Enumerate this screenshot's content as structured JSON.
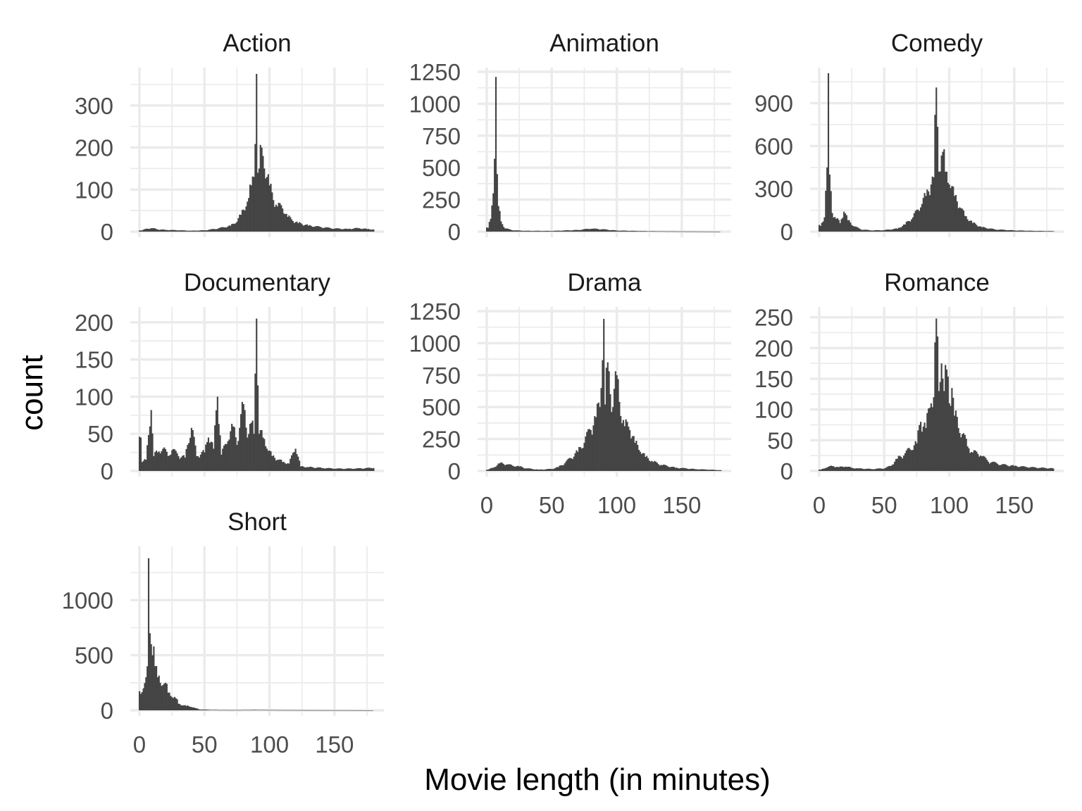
{
  "chart_data": {
    "type": "bar",
    "chart_kind": "faceted histogram",
    "xlabel": "Movie length (in minutes)",
    "ylabel": "count",
    "xlim": [
      0,
      180
    ],
    "x_ticks": [
      0,
      50,
      100,
      150
    ],
    "bin_width_minutes": 1,
    "grid": true,
    "bar_color": "#444444",
    "facets": [
      {
        "name": "Action",
        "ylim": [
          0,
          380
        ],
        "y_ticks": [
          0,
          100,
          200,
          300
        ],
        "y_tick_labels": [
          "0",
          "100",
          "200",
          "300"
        ],
        "show_x_ticks": false,
        "peaks": [
          {
            "x": 2,
            "y": 3
          },
          {
            "x": 6,
            "y": 7
          },
          {
            "x": 10,
            "y": 8
          },
          {
            "x": 14,
            "y": 5
          },
          {
            "x": 20,
            "y": 4
          },
          {
            "x": 30,
            "y": 3
          },
          {
            "x": 40,
            "y": 2
          },
          {
            "x": 50,
            "y": 3
          },
          {
            "x": 58,
            "y": 6
          },
          {
            "x": 65,
            "y": 10
          },
          {
            "x": 70,
            "y": 14
          },
          {
            "x": 74,
            "y": 20
          },
          {
            "x": 78,
            "y": 40
          },
          {
            "x": 82,
            "y": 60
          },
          {
            "x": 84,
            "y": 80
          },
          {
            "x": 86,
            "y": 110
          },
          {
            "x": 88,
            "y": 130
          },
          {
            "x": 90,
            "y": 375
          },
          {
            "x": 91,
            "y": 140
          },
          {
            "x": 92,
            "y": 150
          },
          {
            "x": 94,
            "y": 200
          },
          {
            "x": 96,
            "y": 150
          },
          {
            "x": 98,
            "y": 130
          },
          {
            "x": 100,
            "y": 110
          },
          {
            "x": 103,
            "y": 75
          },
          {
            "x": 106,
            "y": 60
          },
          {
            "x": 110,
            "y": 55
          },
          {
            "x": 114,
            "y": 35
          },
          {
            "x": 118,
            "y": 25
          },
          {
            "x": 122,
            "y": 20
          },
          {
            "x": 130,
            "y": 14
          },
          {
            "x": 140,
            "y": 10
          },
          {
            "x": 150,
            "y": 7
          },
          {
            "x": 160,
            "y": 6
          },
          {
            "x": 168,
            "y": 8
          },
          {
            "x": 175,
            "y": 6
          },
          {
            "x": 180,
            "y": 5
          }
        ]
      },
      {
        "name": "Animation",
        "ylim": [
          0,
          1250
        ],
        "y_ticks": [
          0,
          250,
          500,
          750,
          1000,
          1250
        ],
        "y_tick_labels": [
          "0",
          "250",
          "500",
          "750",
          "1000",
          "1250"
        ],
        "show_x_ticks": false,
        "peaks": [
          {
            "x": 1,
            "y": 30
          },
          {
            "x": 3,
            "y": 100
          },
          {
            "x": 5,
            "y": 300
          },
          {
            "x": 6,
            "y": 570
          },
          {
            "x": 7,
            "y": 1210
          },
          {
            "x": 8,
            "y": 450
          },
          {
            "x": 9,
            "y": 200
          },
          {
            "x": 11,
            "y": 80
          },
          {
            "x": 14,
            "y": 25
          },
          {
            "x": 20,
            "y": 10
          },
          {
            "x": 30,
            "y": 6
          },
          {
            "x": 50,
            "y": 5
          },
          {
            "x": 70,
            "y": 12
          },
          {
            "x": 80,
            "y": 22
          },
          {
            "x": 88,
            "y": 18
          },
          {
            "x": 100,
            "y": 8
          },
          {
            "x": 120,
            "y": 4
          },
          {
            "x": 140,
            "y": 2
          },
          {
            "x": 160,
            "y": 1
          },
          {
            "x": 180,
            "y": 0
          }
        ]
      },
      {
        "name": "Comedy",
        "ylim": [
          0,
          1120
        ],
        "y_ticks": [
          0,
          300,
          600,
          900
        ],
        "y_tick_labels": [
          "0",
          "300",
          "600",
          "900"
        ],
        "show_x_ticks": false,
        "peaks": [
          {
            "x": 1,
            "y": 40
          },
          {
            "x": 4,
            "y": 100
          },
          {
            "x": 6,
            "y": 450
          },
          {
            "x": 7,
            "y": 1110
          },
          {
            "x": 8,
            "y": 400
          },
          {
            "x": 10,
            "y": 130
          },
          {
            "x": 13,
            "y": 90
          },
          {
            "x": 16,
            "y": 60
          },
          {
            "x": 19,
            "y": 140
          },
          {
            "x": 22,
            "y": 80
          },
          {
            "x": 26,
            "y": 40
          },
          {
            "x": 32,
            "y": 15
          },
          {
            "x": 40,
            "y": 8
          },
          {
            "x": 50,
            "y": 10
          },
          {
            "x": 60,
            "y": 20
          },
          {
            "x": 66,
            "y": 50
          },
          {
            "x": 72,
            "y": 100
          },
          {
            "x": 78,
            "y": 170
          },
          {
            "x": 82,
            "y": 250
          },
          {
            "x": 86,
            "y": 330
          },
          {
            "x": 88,
            "y": 380
          },
          {
            "x": 90,
            "y": 1010
          },
          {
            "x": 92,
            "y": 420
          },
          {
            "x": 95,
            "y": 560
          },
          {
            "x": 97,
            "y": 420
          },
          {
            "x": 100,
            "y": 330
          },
          {
            "x": 104,
            "y": 250
          },
          {
            "x": 108,
            "y": 170
          },
          {
            "x": 112,
            "y": 110
          },
          {
            "x": 118,
            "y": 60
          },
          {
            "x": 125,
            "y": 30
          },
          {
            "x": 135,
            "y": 15
          },
          {
            "x": 150,
            "y": 8
          },
          {
            "x": 165,
            "y": 5
          },
          {
            "x": 180,
            "y": 3
          }
        ]
      },
      {
        "name": "Documentary",
        "ylim": [
          0,
          215
        ],
        "y_ticks": [
          0,
          50,
          100,
          150,
          200
        ],
        "y_tick_labels": [
          "0",
          "50",
          "100",
          "150",
          "200"
        ],
        "show_x_ticks": false,
        "peaks": [
          {
            "x": 1,
            "y": 45
          },
          {
            "x": 2,
            "y": 12
          },
          {
            "x": 5,
            "y": 15
          },
          {
            "x": 8,
            "y": 60
          },
          {
            "x": 9,
            "y": 82
          },
          {
            "x": 11,
            "y": 20
          },
          {
            "x": 14,
            "y": 25
          },
          {
            "x": 18,
            "y": 30
          },
          {
            "x": 22,
            "y": 20
          },
          {
            "x": 25,
            "y": 28
          },
          {
            "x": 30,
            "y": 20
          },
          {
            "x": 35,
            "y": 18
          },
          {
            "x": 40,
            "y": 58
          },
          {
            "x": 44,
            "y": 20
          },
          {
            "x": 50,
            "y": 25
          },
          {
            "x": 53,
            "y": 45
          },
          {
            "x": 57,
            "y": 30
          },
          {
            "x": 60,
            "y": 100
          },
          {
            "x": 63,
            "y": 22
          },
          {
            "x": 68,
            "y": 40
          },
          {
            "x": 72,
            "y": 60
          },
          {
            "x": 75,
            "y": 35
          },
          {
            "x": 80,
            "y": 90
          },
          {
            "x": 83,
            "y": 45
          },
          {
            "x": 86,
            "y": 65
          },
          {
            "x": 88,
            "y": 50
          },
          {
            "x": 90,
            "y": 205
          },
          {
            "x": 92,
            "y": 50
          },
          {
            "x": 95,
            "y": 45
          },
          {
            "x": 98,
            "y": 30
          },
          {
            "x": 102,
            "y": 20
          },
          {
            "x": 106,
            "y": 15
          },
          {
            "x": 110,
            "y": 12
          },
          {
            "x": 115,
            "y": 10
          },
          {
            "x": 120,
            "y": 30
          },
          {
            "x": 124,
            "y": 6
          },
          {
            "x": 130,
            "y": 5
          },
          {
            "x": 140,
            "y": 4
          },
          {
            "x": 150,
            "y": 3
          },
          {
            "x": 165,
            "y": 3
          },
          {
            "x": 180,
            "y": 4
          }
        ]
      },
      {
        "name": "Drama",
        "ylim": [
          0,
          1250
        ],
        "y_ticks": [
          0,
          250,
          500,
          750,
          1000,
          1250
        ],
        "y_tick_labels": [
          "0",
          "250",
          "500",
          "750",
          "1000",
          "1250"
        ],
        "show_x_ticks": true,
        "peaks": [
          {
            "x": 1,
            "y": 10
          },
          {
            "x": 5,
            "y": 25
          },
          {
            "x": 10,
            "y": 60
          },
          {
            "x": 15,
            "y": 50
          },
          {
            "x": 20,
            "y": 40
          },
          {
            "x": 25,
            "y": 35
          },
          {
            "x": 30,
            "y": 20
          },
          {
            "x": 40,
            "y": 10
          },
          {
            "x": 50,
            "y": 15
          },
          {
            "x": 55,
            "y": 30
          },
          {
            "x": 60,
            "y": 60
          },
          {
            "x": 65,
            "y": 100
          },
          {
            "x": 70,
            "y": 150
          },
          {
            "x": 75,
            "y": 220
          },
          {
            "x": 80,
            "y": 320
          },
          {
            "x": 84,
            "y": 420
          },
          {
            "x": 87,
            "y": 500
          },
          {
            "x": 90,
            "y": 1190
          },
          {
            "x": 91,
            "y": 520
          },
          {
            "x": 93,
            "y": 850
          },
          {
            "x": 95,
            "y": 600
          },
          {
            "x": 97,
            "y": 500
          },
          {
            "x": 100,
            "y": 750
          },
          {
            "x": 103,
            "y": 430
          },
          {
            "x": 106,
            "y": 350
          },
          {
            "x": 110,
            "y": 320
          },
          {
            "x": 114,
            "y": 220
          },
          {
            "x": 118,
            "y": 150
          },
          {
            "x": 122,
            "y": 110
          },
          {
            "x": 128,
            "y": 70
          },
          {
            "x": 135,
            "y": 45
          },
          {
            "x": 145,
            "y": 25
          },
          {
            "x": 160,
            "y": 14
          },
          {
            "x": 170,
            "y": 10
          },
          {
            "x": 180,
            "y": 6
          }
        ]
      },
      {
        "name": "Romance",
        "ylim": [
          0,
          260
        ],
        "y_ticks": [
          0,
          50,
          100,
          150,
          200,
          250
        ],
        "y_tick_labels": [
          "0",
          "50",
          "100",
          "150",
          "200",
          "250"
        ],
        "show_x_ticks": true,
        "peaks": [
          {
            "x": 1,
            "y": 2
          },
          {
            "x": 5,
            "y": 5
          },
          {
            "x": 10,
            "y": 8
          },
          {
            "x": 15,
            "y": 6
          },
          {
            "x": 20,
            "y": 7
          },
          {
            "x": 25,
            "y": 5
          },
          {
            "x": 30,
            "y": 4
          },
          {
            "x": 40,
            "y": 3
          },
          {
            "x": 50,
            "y": 4
          },
          {
            "x": 55,
            "y": 8
          },
          {
            "x": 60,
            "y": 20
          },
          {
            "x": 65,
            "y": 25
          },
          {
            "x": 70,
            "y": 35
          },
          {
            "x": 75,
            "y": 45
          },
          {
            "x": 78,
            "y": 80
          },
          {
            "x": 82,
            "y": 70
          },
          {
            "x": 86,
            "y": 110
          },
          {
            "x": 88,
            "y": 120
          },
          {
            "x": 90,
            "y": 248
          },
          {
            "x": 92,
            "y": 130
          },
          {
            "x": 94,
            "y": 175
          },
          {
            "x": 96,
            "y": 130
          },
          {
            "x": 98,
            "y": 165
          },
          {
            "x": 100,
            "y": 110
          },
          {
            "x": 102,
            "y": 135
          },
          {
            "x": 104,
            "y": 90
          },
          {
            "x": 107,
            "y": 70
          },
          {
            "x": 110,
            "y": 60
          },
          {
            "x": 114,
            "y": 40
          },
          {
            "x": 118,
            "y": 30
          },
          {
            "x": 124,
            "y": 25
          },
          {
            "x": 130,
            "y": 15
          },
          {
            "x": 140,
            "y": 10
          },
          {
            "x": 150,
            "y": 8
          },
          {
            "x": 160,
            "y": 6
          },
          {
            "x": 170,
            "y": 5
          },
          {
            "x": 180,
            "y": 4
          }
        ]
      },
      {
        "name": "Short",
        "ylim": [
          0,
          1450
        ],
        "y_ticks": [
          0,
          500,
          1000
        ],
        "y_tick_labels": [
          "0",
          "500",
          "1000"
        ],
        "show_x_ticks": true,
        "peaks": [
          {
            "x": 1,
            "y": 150
          },
          {
            "x": 3,
            "y": 200
          },
          {
            "x": 5,
            "y": 300
          },
          {
            "x": 6,
            "y": 400
          },
          {
            "x": 7,
            "y": 1380
          },
          {
            "x": 8,
            "y": 700
          },
          {
            "x": 9,
            "y": 600
          },
          {
            "x": 10,
            "y": 500
          },
          {
            "x": 11,
            "y": 580
          },
          {
            "x": 12,
            "y": 400
          },
          {
            "x": 14,
            "y": 300
          },
          {
            "x": 16,
            "y": 250
          },
          {
            "x": 18,
            "y": 230
          },
          {
            "x": 20,
            "y": 250
          },
          {
            "x": 22,
            "y": 160
          },
          {
            "x": 25,
            "y": 120
          },
          {
            "x": 28,
            "y": 110
          },
          {
            "x": 30,
            "y": 60
          },
          {
            "x": 33,
            "y": 45
          },
          {
            "x": 36,
            "y": 40
          },
          {
            "x": 40,
            "y": 30
          },
          {
            "x": 43,
            "y": 20
          },
          {
            "x": 46,
            "y": 8
          },
          {
            "x": 55,
            "y": 4
          },
          {
            "x": 70,
            "y": 2
          },
          {
            "x": 90,
            "y": 4
          },
          {
            "x": 110,
            "y": 2
          },
          {
            "x": 140,
            "y": 1
          },
          {
            "x": 180,
            "y": 0
          }
        ]
      }
    ]
  }
}
